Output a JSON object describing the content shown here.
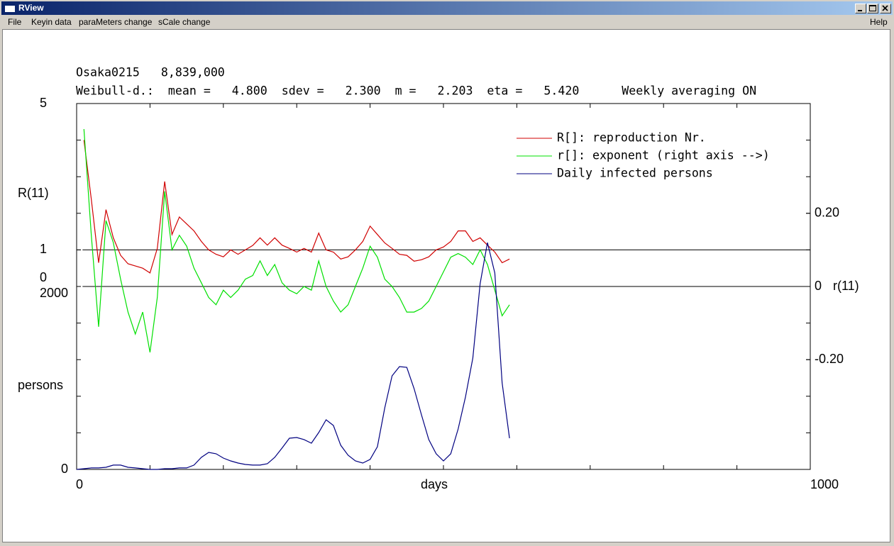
{
  "window": {
    "title": "RView",
    "menu": [
      "File",
      "Keyin data",
      "paraMeters change",
      "sCale change"
    ],
    "help": "Help"
  },
  "chart_data": {
    "type": "line",
    "title": "Osaka0215   8,839,000",
    "subtitle": "Weibull-d.:  mean =   4.800  sdev =   2.300  m =   2.203  eta =   5.420      Weekly averaging ON",
    "xlabel": "days",
    "xlim": [
      0,
      1000
    ],
    "xticks": [
      0,
      1000
    ],
    "ylabel": "R(11)",
    "ylim": [
      -5,
      5
    ],
    "yticks": [
      0,
      1,
      5
    ],
    "ref_lines": [
      1,
      0
    ],
    "y2label": "r(11)",
    "y2lim": [
      -0.5,
      0.5
    ],
    "y2ticks": [
      {
        "value": 0.2,
        "label": "0.20"
      },
      0,
      {
        "value": -0.2,
        "label": "-0.20"
      }
    ],
    "y3label": "persons",
    "y3lim": [
      0,
      4000
    ],
    "y3ticks": [
      0,
      2000
    ],
    "legend": "upper right",
    "x": [
      0,
      10,
      20,
      30,
      40,
      50,
      60,
      70,
      80,
      90,
      100,
      110,
      120,
      130,
      140,
      150,
      160,
      170,
      180,
      190,
      200,
      210,
      220,
      230,
      240,
      250,
      260,
      270,
      280,
      290,
      300,
      310,
      320,
      330,
      340,
      350,
      360,
      370,
      380,
      390,
      400,
      410,
      420,
      430,
      440,
      450,
      460,
      470,
      480,
      490,
      500,
      510,
      520,
      530,
      540,
      550,
      560,
      570,
      580,
      590
    ],
    "series": [
      {
        "name": "R[]: reproduction Nr.",
        "color": "#d00000",
        "axis": "y",
        "values": [
          null,
          4.0,
          2.38,
          0.65,
          2.1,
          1.33,
          0.85,
          0.62,
          0.56,
          0.5,
          0.37,
          1.04,
          2.87,
          1.42,
          1.9,
          1.71,
          1.52,
          1.23,
          1.0,
          0.88,
          0.81,
          1.0,
          0.88,
          1.0,
          1.12,
          1.33,
          1.13,
          1.33,
          1.13,
          1.04,
          0.94,
          1.04,
          0.94,
          1.46,
          1.0,
          0.94,
          0.75,
          0.81,
          1.0,
          1.23,
          1.65,
          1.42,
          1.19,
          1.04,
          0.88,
          0.85,
          0.69,
          0.73,
          0.81,
          1.0,
          1.08,
          1.23,
          1.52,
          1.52,
          1.23,
          1.33,
          1.13,
          0.94,
          0.65,
          0.75
        ]
      },
      {
        "name": "r[]: exponent (right axis -->)",
        "color": "#00e000",
        "axis": "y2",
        "values": [
          null,
          0.43,
          0.14,
          -0.11,
          0.18,
          0.12,
          0.02,
          -0.07,
          -0.13,
          -0.07,
          -0.18,
          -0.03,
          0.26,
          0.1,
          0.14,
          0.11,
          0.05,
          0.01,
          -0.03,
          -0.05,
          -0.01,
          -0.03,
          -0.01,
          0.02,
          0.03,
          0.07,
          0.03,
          0.06,
          0.01,
          -0.01,
          -0.02,
          0.0,
          -0.01,
          0.07,
          0.0,
          -0.04,
          -0.07,
          -0.05,
          0.0,
          0.05,
          0.11,
          0.08,
          0.02,
          0.0,
          -0.03,
          -0.07,
          -0.07,
          -0.06,
          -0.04,
          0.0,
          0.04,
          0.08,
          0.09,
          0.08,
          0.06,
          0.1,
          0.06,
          -0.01,
          -0.08,
          -0.05
        ]
      },
      {
        "name": "Daily infected persons",
        "color": "#000080",
        "axis": "y3",
        "values": [
          0,
          8,
          16,
          16,
          23,
          47,
          47,
          23,
          16,
          8,
          0,
          0,
          8,
          8,
          16,
          16,
          47,
          132,
          186,
          171,
          124,
          93,
          70,
          54,
          47,
          47,
          62,
          132,
          233,
          341,
          349,
          326,
          287,
          403,
          543,
          481,
          264,
          155,
          93,
          70,
          109,
          248,
          674,
          1023,
          1124,
          1116,
          884,
          597,
          326,
          171,
          93,
          171,
          442,
          791,
          1217,
          2031,
          2480,
          2147,
          946,
          341
        ]
      }
    ]
  }
}
